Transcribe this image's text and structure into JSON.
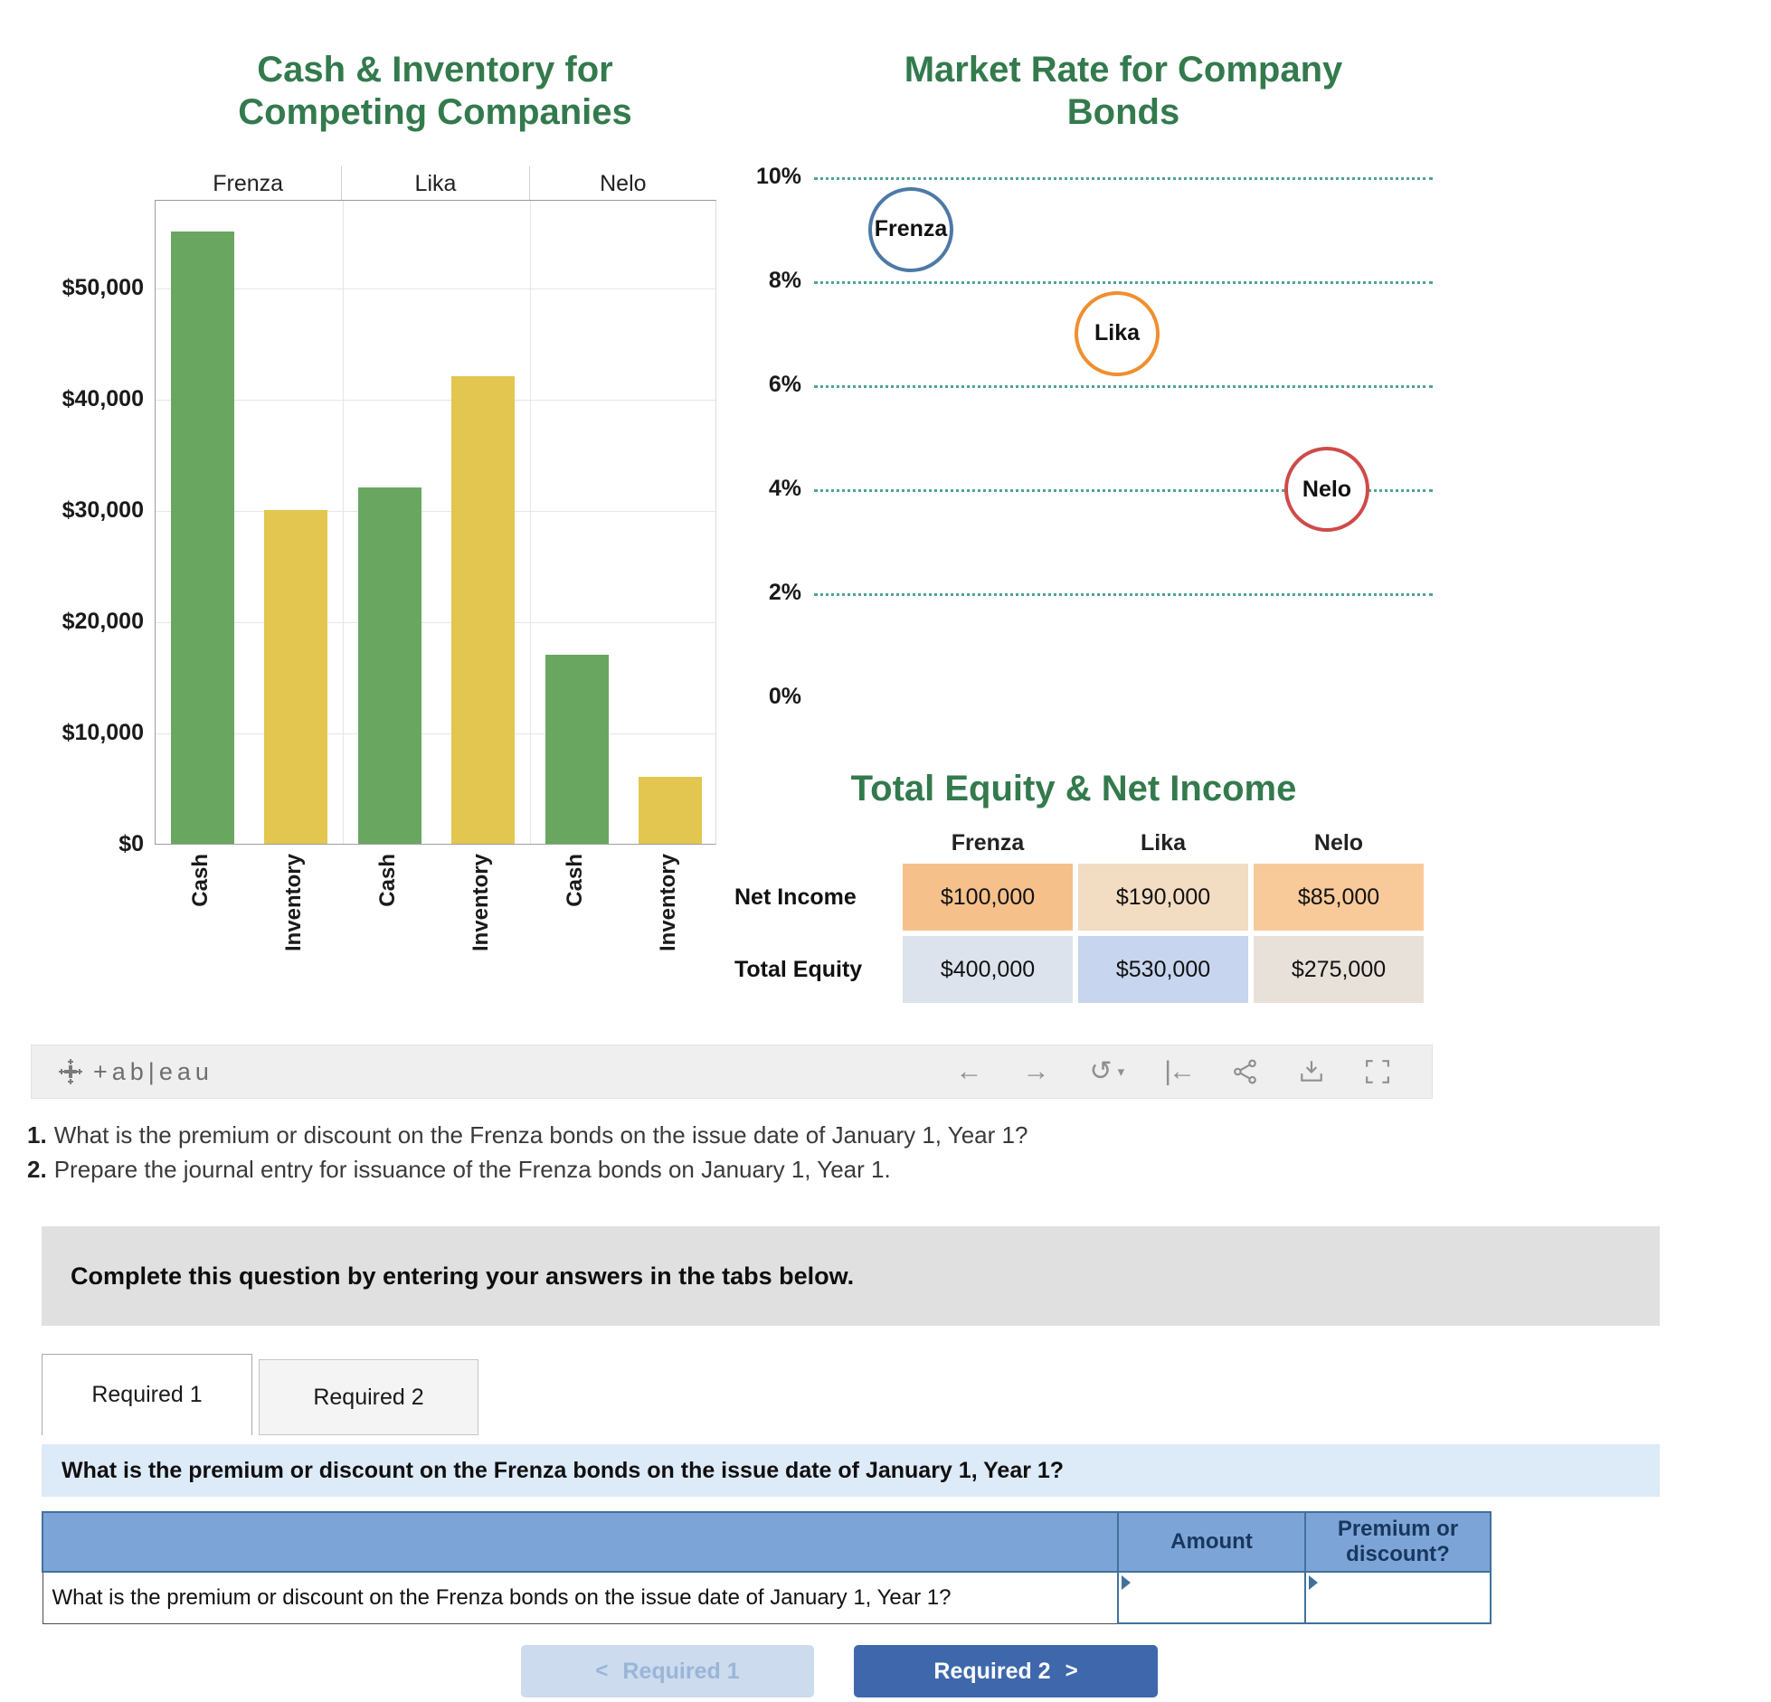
{
  "chart_data": [
    {
      "type": "bar",
      "title": "Cash & Inventory for Competing Companies",
      "title_lines": [
        "Cash & Inventory for",
        "Competing Companies"
      ],
      "categories": [
        "Frenza",
        "Lika",
        "Nelo"
      ],
      "series": [
        {
          "name": "Cash",
          "color": "#69a761",
          "values": [
            55000,
            32000,
            17000
          ]
        },
        {
          "name": "Inventory",
          "color": "#e3c64f",
          "values": [
            30000,
            42000,
            6000
          ]
        }
      ],
      "ylim": [
        0,
        58000
      ],
      "y_tick_step": 10000,
      "y_tick_labels": [
        "$0",
        "$10,000",
        "$20,000",
        "$30,000",
        "$40,000",
        "$50,000"
      ],
      "grid": true,
      "legend": "none"
    },
    {
      "type": "scatter",
      "title": "Market Rate for Company Bonds",
      "title_lines": [
        "Market Rate for Company",
        "Bonds"
      ],
      "points": [
        {
          "label": "Frenza",
          "rate_pct": 9,
          "color": "#4e79a7"
        },
        {
          "label": "Lika",
          "rate_pct": 7,
          "color": "#ef8f2e"
        },
        {
          "label": "Nelo",
          "rate_pct": 4,
          "color": "#cf4a4a"
        }
      ],
      "ylim": [
        0,
        10
      ],
      "y_tick_labels": [
        "0%",
        "2%",
        "4%",
        "6%",
        "8%",
        "10%"
      ],
      "gridline_color": "#4fa39a",
      "grid": "dotted horizontal"
    },
    {
      "type": "table",
      "title": "Total Equity & Net Income",
      "columns": [
        "Frenza",
        "Lika",
        "Nelo"
      ],
      "rows": [
        {
          "label": "Net Income",
          "values": [
            "$100,000",
            "$190,000",
            "$85,000"
          ],
          "cell_colors": [
            "#f6c08b",
            "#f2dcc2",
            "#f8ca9a"
          ]
        },
        {
          "label": "Total Equity",
          "values": [
            "$400,000",
            "$530,000",
            "$275,000"
          ],
          "cell_colors": [
            "#dde3ec",
            "#c7d5ee",
            "#e8e1d9"
          ]
        }
      ]
    }
  ],
  "toolbar": {
    "brand_text": "+ab|eau",
    "undo": "←",
    "redo": "→",
    "replay": "↺",
    "replay_caret": "▾",
    "reset": "|←"
  },
  "questions": [
    {
      "number": "1.",
      "text": "What is the premium or discount on the Frenza bonds on the issue date of January 1, Year 1?"
    },
    {
      "number": "2.",
      "text": "Prepare the journal entry for issuance of the Frenza bonds on January 1, Year 1."
    }
  ],
  "instruction_banner": "Complete this question by entering your answers in the tabs below.",
  "tabs": [
    {
      "label": "Required 1"
    },
    {
      "label": "Required 2"
    }
  ],
  "required1_panel": {
    "prompt": "What is the premium or discount on the Frenza bonds on the issue date of January 1, Year 1?",
    "table": {
      "amount_header": "Amount",
      "premium_header": "Premium or discount?",
      "row_question": "What is the premium or discount on the Frenza bonds on the issue date of January 1, Year 1?",
      "amount_value": "",
      "premium_value": ""
    }
  },
  "footer_nav": {
    "prev_chevron": "<",
    "prev_label": "Required 1",
    "next_label": "Required 2",
    "next_chevron": ">"
  }
}
